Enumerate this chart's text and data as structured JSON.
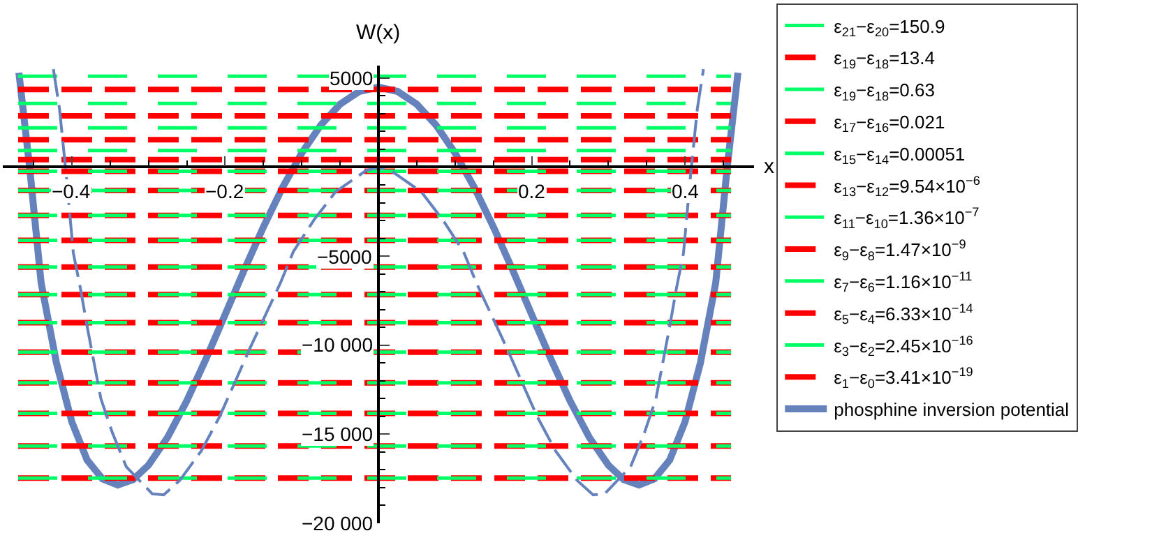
{
  "chart_data": {
    "type": "line",
    "xlabel": "x",
    "ylabel": "W(x)",
    "xlim": [
      -0.49,
      0.49
    ],
    "ylim": [
      -20000,
      5700
    ],
    "xticks": [
      {
        "value": -0.45,
        "label": null
      },
      {
        "value": -0.4,
        "label": "−0.4"
      },
      {
        "value": -0.35,
        "label": null
      },
      {
        "value": -0.3,
        "label": null
      },
      {
        "value": -0.25,
        "label": null
      },
      {
        "value": -0.2,
        "label": "−0.2"
      },
      {
        "value": -0.15,
        "label": null
      },
      {
        "value": -0.1,
        "label": null
      },
      {
        "value": -0.05,
        "label": null
      },
      {
        "value": 0.05,
        "label": null
      },
      {
        "value": 0.1,
        "label": null
      },
      {
        "value": 0.15,
        "label": null
      },
      {
        "value": 0.2,
        "label": "0.2"
      },
      {
        "value": 0.25,
        "label": null
      },
      {
        "value": 0.3,
        "label": null
      },
      {
        "value": 0.35,
        "label": null
      },
      {
        "value": 0.4,
        "label": "0.4"
      },
      {
        "value": 0.45,
        "label": null
      }
    ],
    "yticks": [
      5000,
      {
        "value": 4000,
        "label": null
      },
      {
        "value": 3000,
        "label": null
      },
      {
        "value": 2000,
        "label": null
      },
      {
        "value": 1000,
        "label": null
      },
      {
        "value": -1000,
        "label": null
      },
      {
        "value": -2000,
        "label": null
      },
      {
        "value": -3000,
        "label": null
      },
      {
        "value": -4000,
        "label": null
      },
      {
        "value": -5000,
        "label": "−5000"
      },
      {
        "value": -6000,
        "label": null
      },
      {
        "value": -7000,
        "label": null
      },
      {
        "value": -8000,
        "label": null
      },
      {
        "value": -9000,
        "label": null
      },
      {
        "value": -10000,
        "label": "−10 000"
      },
      {
        "value": -11000,
        "label": null
      },
      {
        "value": -12000,
        "label": null
      },
      {
        "value": -13000,
        "label": null
      },
      {
        "value": -14000,
        "label": null
      },
      {
        "value": -15000,
        "label": "−15 000"
      },
      {
        "value": -16000,
        "label": null
      },
      {
        "value": -17000,
        "label": null
      },
      {
        "value": -18000,
        "label": null
      },
      {
        "value": -19000,
        "label": null
      },
      {
        "value": -20000,
        "label": "−20 000"
      }
    ],
    "legend": "right",
    "series": [
      {
        "name": "ε$_{21}$−ε$_{20}$=150.9",
        "color": "#00ff66",
        "line_style": "dashed",
        "x": [
          -0.47,
          0.46
        ],
        "values": [
          5100,
          5100
        ]
      },
      {
        "name": "ε$_{19}$−ε$_{18}$=13.4",
        "color": "#ff0000",
        "line_style": "dashed",
        "x": [
          -0.47,
          0.46
        ],
        "values": [
          4360,
          4360
        ]
      },
      {
        "name": "ε$_{19}$−ε$_{18}$=0.63",
        "color": "#00ff66",
        "line_style": "dashed",
        "x": [
          -0.47,
          0.46
        ],
        "values": [
          3570,
          3570
        ]
      },
      {
        "name": "ε$_{17}$−ε$_{16}$=0.021",
        "color": "#ff0000",
        "line_style": "dashed",
        "x": [
          -0.47,
          0.46
        ],
        "values": [
          2880,
          2880
        ]
      },
      {
        "name": "ε$_{15}$−ε$_{14}$=0.00051",
        "color": "#00ff66",
        "line_style": "dashed",
        "x": [
          -0.47,
          0.46
        ],
        "values": [
          2200,
          2200
        ]
      },
      {
        "name": "ε$_{13}$−ε$_{12}$=9.54×10$^{−6}$",
        "color": "#ff0000",
        "line_style": "dashed",
        "x": [
          -0.47,
          0.46
        ],
        "values": [
          1540,
          1540
        ]
      },
      {
        "name": "ε$_{11}$−ε$_{10}$=1.36×10$^{−7}$",
        "color": "#00ff66",
        "line_style": "dashed",
        "x": [
          -0.47,
          0.46
        ],
        "values": [
          930,
          930
        ]
      },
      {
        "name": "ε$_{9}$−ε$_{8}$=1.47×10$^{−9}$",
        "color": "#ff0000",
        "line_style": "dashed",
        "x": [
          -0.47,
          0.46
        ],
        "values": [
          420,
          420
        ]
      },
      {
        "name": "ε$_{7}$−ε$_{6}$=1.16×10$^{−11}$",
        "color": "#00ff66",
        "line_style": "dashed",
        "x": [
          -0.47,
          0.46
        ],
        "values": [
          -240,
          -240
        ]
      },
      {
        "name": "ε$_{5}$−ε$_{4}$=6.33×10$^{−14}$",
        "color": "#ff0000",
        "line_style": "dashed",
        "x": [
          -0.47,
          0.46
        ],
        "values": [
          -240,
          -240
        ]
      },
      {
        "name": "ε$_{3}$−ε$_{2}$=2.45×10$^{−16}$",
        "color": "#00ff66",
        "line_style": "dashed",
        "x": [
          -0.47,
          0.46
        ],
        "values": [
          -1310,
          -1310
        ]
      },
      {
        "name": "ε$_{1}$−ε$_{0}$=3.41×10$^{−19}$",
        "color": "#ff0000",
        "line_style": "dashed",
        "x": [
          -0.47,
          0.46
        ],
        "values": [
          -1310,
          -1310
        ]
      },
      {
        "color": "#00ff66",
        "line_style": "dashed",
        "x": [
          -0.47,
          0.46
        ],
        "values": [
          -2710,
          -2710
        ]
      },
      {
        "color": "#ff0000",
        "line_style": "dashed",
        "x": [
          -0.47,
          0.46
        ],
        "values": [
          -2710,
          -2710
        ]
      },
      {
        "color": "#00ff66",
        "line_style": "dashed",
        "x": [
          -0.47,
          0.46
        ],
        "values": [
          -4110,
          -4110
        ]
      },
      {
        "color": "#ff0000",
        "line_style": "dashed",
        "x": [
          -0.47,
          0.46
        ],
        "values": [
          -4110,
          -4110
        ]
      },
      {
        "color": "#00ff66",
        "line_style": "dashed",
        "x": [
          -0.47,
          0.46
        ],
        "values": [
          -5610,
          -5610
        ]
      },
      {
        "color": "#ff0000",
        "line_style": "dashed",
        "x": [
          -0.47,
          0.46
        ],
        "values": [
          -5610,
          -5610
        ]
      },
      {
        "color": "#00ff66",
        "line_style": "dashed",
        "x": [
          -0.47,
          0.46
        ],
        "values": [
          -7160,
          -7160
        ]
      },
      {
        "color": "#ff0000",
        "line_style": "dashed",
        "x": [
          -0.47,
          0.46
        ],
        "values": [
          -7160,
          -7160
        ]
      },
      {
        "color": "#00ff66",
        "line_style": "dashed",
        "x": [
          -0.47,
          0.46
        ],
        "values": [
          -8740,
          -8740
        ]
      },
      {
        "color": "#ff0000",
        "line_style": "dashed",
        "x": [
          -0.47,
          0.46
        ],
        "values": [
          -8740,
          -8740
        ]
      },
      {
        "color": "#00ff66",
        "line_style": "dashed",
        "x": [
          -0.47,
          0.46
        ],
        "values": [
          -10390,
          -10390
        ]
      },
      {
        "color": "#ff0000",
        "line_style": "dashed",
        "x": [
          -0.47,
          0.46
        ],
        "values": [
          -10390,
          -10390
        ]
      },
      {
        "color": "#00ff66",
        "line_style": "dashed",
        "x": [
          -0.47,
          0.46
        ],
        "values": [
          -12120,
          -12120
        ]
      },
      {
        "color": "#ff0000",
        "line_style": "dashed",
        "x": [
          -0.47,
          0.46
        ],
        "values": [
          -12120,
          -12120
        ]
      },
      {
        "color": "#00ff66",
        "line_style": "dashed",
        "x": [
          -0.47,
          0.46
        ],
        "values": [
          -13830,
          -13830
        ]
      },
      {
        "color": "#ff0000",
        "line_style": "dashed",
        "x": [
          -0.47,
          0.46
        ],
        "values": [
          -13830,
          -13830
        ]
      },
      {
        "color": "#00ff66",
        "line_style": "dashed",
        "x": [
          -0.47,
          0.46
        ],
        "values": [
          -15660,
          -15660
        ]
      },
      {
        "color": "#ff0000",
        "line_style": "dashed",
        "x": [
          -0.47,
          0.46
        ],
        "values": [
          -15660,
          -15660
        ]
      },
      {
        "color": "#00ff66",
        "line_style": "dashed",
        "x": [
          -0.47,
          0.46
        ],
        "values": [
          -17460,
          -17460
        ]
      },
      {
        "color": "#ff0000",
        "line_style": "dashed",
        "x": [
          -0.47,
          0.46
        ],
        "values": [
          -17460,
          -17460
        ]
      },
      {
        "name": "phosphine inversion potential",
        "color": "#6582bd",
        "line_style": "solid",
        "x": [
          -0.469,
          -0.455,
          -0.44,
          -0.42,
          -0.4,
          -0.38,
          -0.36,
          -0.34,
          -0.32,
          -0.3,
          -0.275,
          -0.25,
          -0.225,
          -0.2,
          -0.175,
          -0.15,
          -0.125,
          -0.1,
          -0.075,
          -0.05,
          -0.025,
          0,
          0.025,
          0.05,
          0.075,
          0.1,
          0.125,
          0.15,
          0.175,
          0.2,
          0.225,
          0.25,
          0.275,
          0.3,
          0.32,
          0.34,
          0.36,
          0.38,
          0.4,
          0.42,
          0.44,
          0.455,
          0.469
        ],
        "values": [
          5300,
          0,
          -6500,
          -11000,
          -14300,
          -16450,
          -17510,
          -17850,
          -17550,
          -16740,
          -15170,
          -13130,
          -10780,
          -8290,
          -5770,
          -3360,
          -1140,
          790,
          2370,
          3530,
          4250,
          4490,
          4250,
          3530,
          2370,
          790,
          -1140,
          -3360,
          -5770,
          -8290,
          -10780,
          -13130,
          -15170,
          -16740,
          -17550,
          -17850,
          -17510,
          -16450,
          -14300,
          -11000,
          -6500,
          0,
          5300
        ]
      },
      {
        "color": "#6582bd",
        "line_style": "dashed",
        "x": [
          -0.424,
          -0.416,
          -0.407,
          -0.398,
          -0.389,
          -0.38,
          -0.362,
          -0.347,
          -0.329,
          -0.295,
          -0.28,
          -0.259,
          -0.231,
          -0.207,
          -0.168,
          -0.128,
          -0.111,
          -0.084,
          -0.056,
          -0.016,
          0,
          0.016,
          0.056,
          0.084,
          0.111,
          0.128,
          0.168,
          0.207,
          0.231,
          0.259,
          0.28,
          0.295,
          0.329,
          0.347,
          0.362,
          0.38,
          0.389,
          0.398,
          0.407,
          0.416,
          0.424
        ],
        "values": [
          5500,
          3270,
          -550,
          -4820,
          -6750,
          -8940,
          -13010,
          -14920,
          -16820,
          -18350,
          -18400,
          -17590,
          -15930,
          -14000,
          -10210,
          -6520,
          -4750,
          -2960,
          -1390,
          -190,
          0,
          -190,
          -1390,
          -2960,
          -4750,
          -6520,
          -10210,
          -14000,
          -15930,
          -17590,
          -18400,
          -18350,
          -16820,
          -14920,
          -13010,
          -8940,
          -6750,
          -4820,
          -550,
          3270,
          5500
        ]
      }
    ]
  }
}
